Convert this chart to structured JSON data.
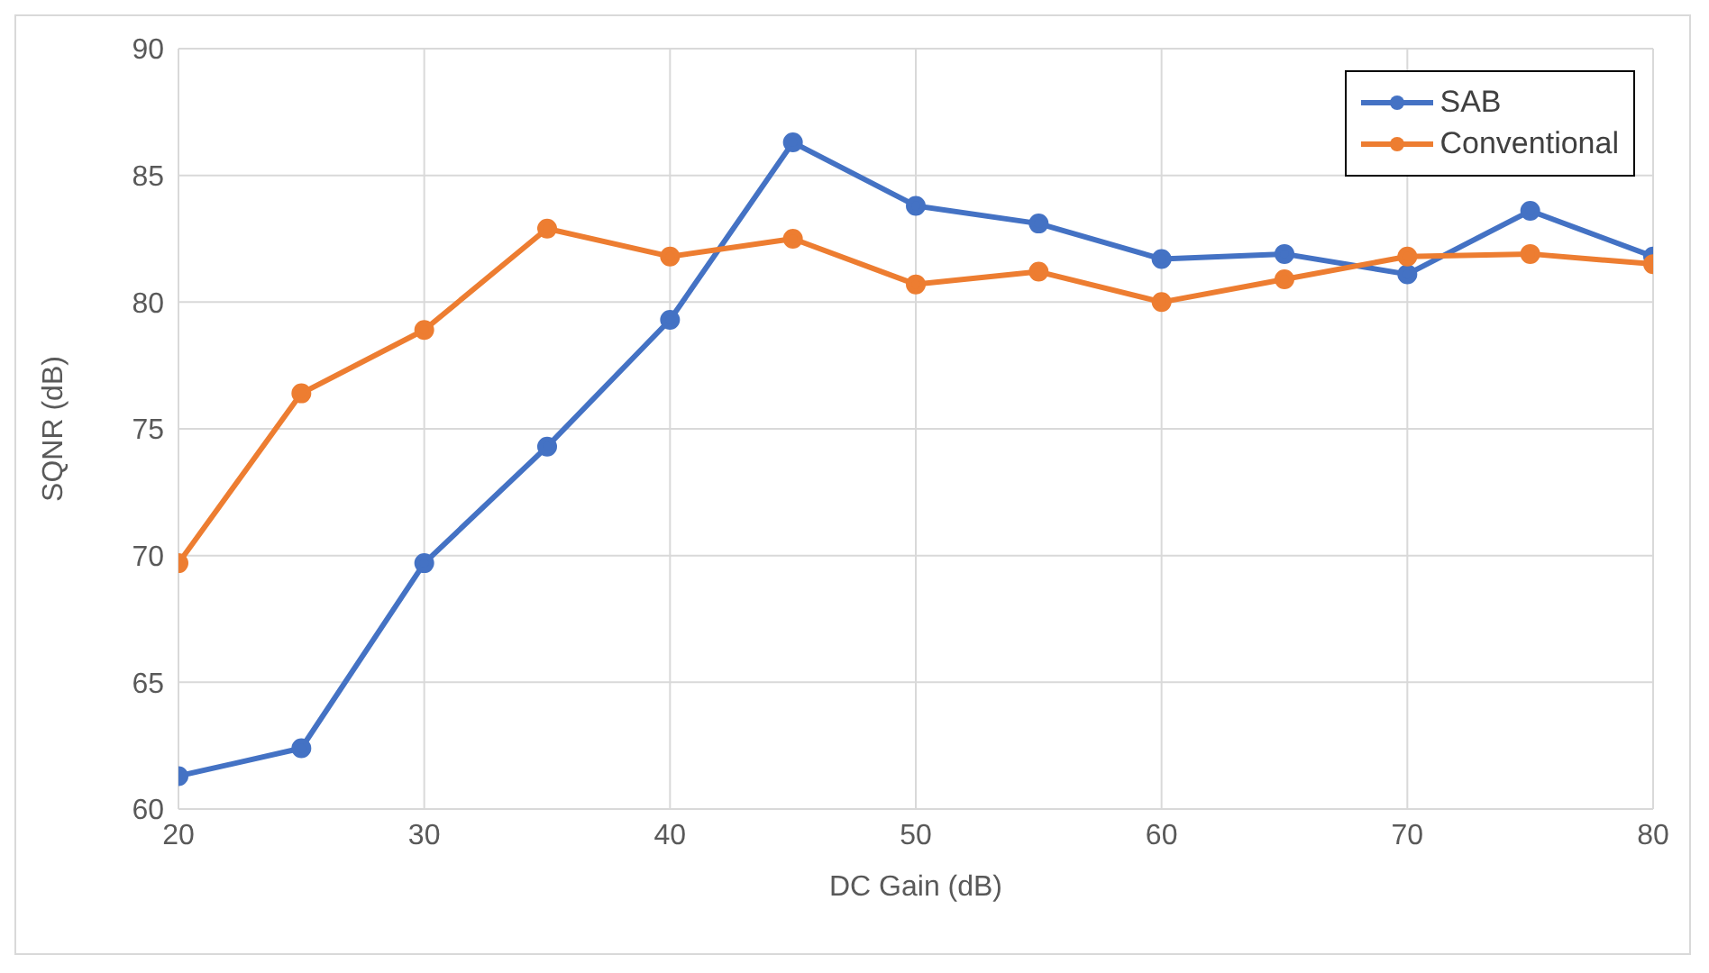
{
  "chart_data": {
    "type": "line",
    "xlabel": "DC Gain (dB)",
    "ylabel": "SQNR (dB)",
    "x": [
      20,
      25,
      30,
      35,
      40,
      45,
      50,
      55,
      60,
      65,
      70,
      75,
      80
    ],
    "series": [
      {
        "name": "SAB",
        "color": "#4472c4",
        "values": [
          61.3,
          62.4,
          69.7,
          74.3,
          79.3,
          86.3,
          83.8,
          83.1,
          81.7,
          81.9,
          81.1,
          83.6,
          81.8
        ]
      },
      {
        "name": "Conventional",
        "color": "#ed7d31",
        "values": [
          69.7,
          76.4,
          78.9,
          82.9,
          81.8,
          82.5,
          80.7,
          81.2,
          80.0,
          80.9,
          81.8,
          81.9,
          81.5
        ]
      }
    ],
    "xlim": [
      20,
      80
    ],
    "xticks": [
      20,
      30,
      40,
      50,
      60,
      70,
      80
    ],
    "ylim": [
      60,
      90
    ],
    "yticks": [
      60,
      65,
      70,
      75,
      80,
      85,
      90
    ],
    "grid": true,
    "legend": "top right",
    "marker": "circle",
    "line_style": "solid"
  }
}
